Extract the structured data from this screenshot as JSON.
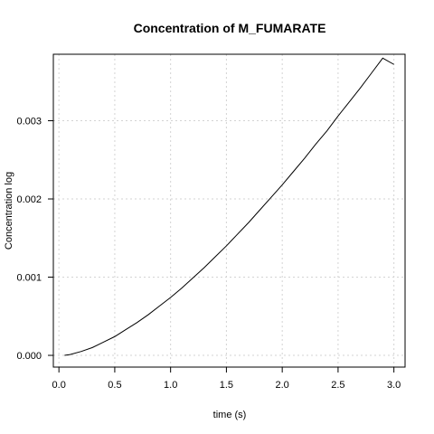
{
  "chart_data": {
    "type": "line",
    "title": "Concentration of M_FUMARATE",
    "xlabel": "time (s)",
    "ylabel": "Concentration log",
    "xlim": [
      -0.05,
      3.1
    ],
    "ylim": [
      -0.00015,
      0.00385
    ],
    "grid": true,
    "legend": "none",
    "x_ticks": [
      0.0,
      0.5,
      1.0,
      1.5,
      2.0,
      2.5,
      3.0
    ],
    "x_tick_labels": [
      "0.0",
      "0.5",
      "1.0",
      "1.5",
      "2.0",
      "2.5",
      "3.0"
    ],
    "y_ticks": [
      0.0,
      0.001,
      0.002,
      0.003
    ],
    "y_tick_labels": [
      "0.000",
      "0.001",
      "0.002",
      "0.003"
    ],
    "series": [
      {
        "color": "#000000",
        "x": [
          0.05,
          0.1,
          0.2,
          0.3,
          0.4,
          0.5,
          0.6,
          0.7,
          0.8,
          0.9,
          1.0,
          1.1,
          1.2,
          1.3,
          1.4,
          1.5,
          1.6,
          1.7,
          1.8,
          1.9,
          2.0,
          2.1,
          2.2,
          2.3,
          2.4,
          2.5,
          2.6,
          2.7,
          2.8,
          2.9,
          3.0
        ],
        "y": [
          0.0,
          1e-05,
          5e-05,
          0.0001,
          0.00017,
          0.00024,
          0.00033,
          0.00042,
          0.00052,
          0.00063,
          0.00074,
          0.00086,
          0.00099,
          0.00112,
          0.00126,
          0.0014,
          0.00155,
          0.0017,
          0.00186,
          0.00202,
          0.00218,
          0.00235,
          0.00252,
          0.0027,
          0.00287,
          0.00306,
          0.00324,
          0.00342,
          0.00361,
          0.0038,
          0.00372
        ]
      }
    ]
  }
}
